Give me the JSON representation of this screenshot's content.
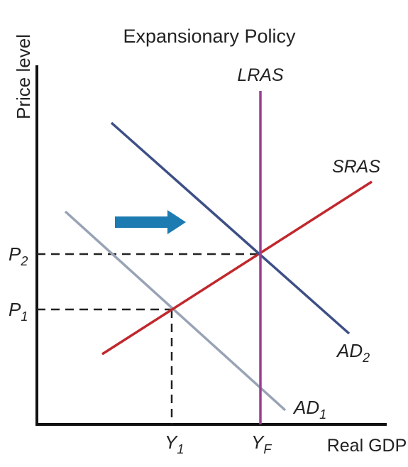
{
  "title": "Expansionary Policy",
  "y_axis_label": "Price level",
  "x_axis_label": "Real GDP",
  "curves": {
    "lras": {
      "label": "LRAS",
      "color": "#9b3f93"
    },
    "sras": {
      "label": "SRAS",
      "color": "#c0282d"
    },
    "ad2": {
      "label": "AD",
      "sub": "2",
      "color": "#3d4f86"
    },
    "ad1": {
      "label": "AD",
      "sub": "1",
      "color": "#98a3b5"
    }
  },
  "price_ticks": {
    "p2": {
      "label": "P",
      "sub": "2"
    },
    "p1": {
      "label": "P",
      "sub": "1"
    }
  },
  "output_ticks": {
    "y1": {
      "label": "Y",
      "sub": "1"
    },
    "yf": {
      "label": "Y",
      "sub": "F"
    }
  },
  "shift_arrow": {
    "direction": "right",
    "color": "#1c7bb0"
  },
  "colors": {
    "axis": "#111111",
    "guide": "#222222"
  }
}
